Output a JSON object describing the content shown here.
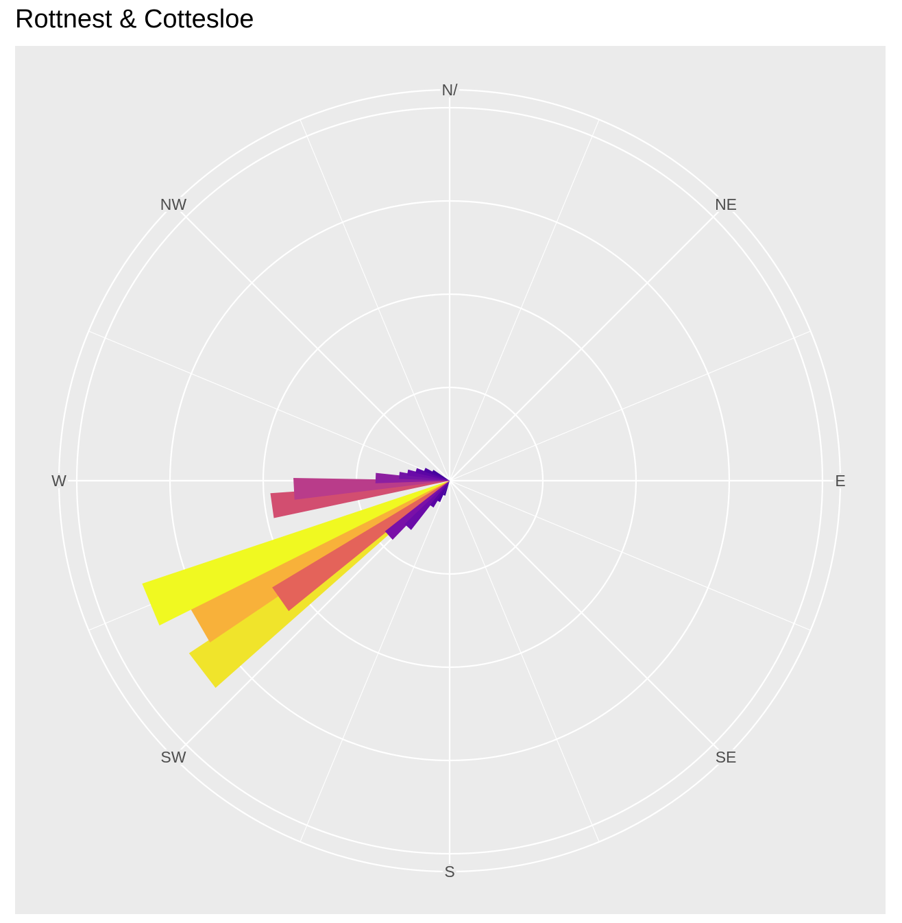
{
  "chart_data": {
    "type": "bar",
    "projection": "polar",
    "title": "Rottnest & Cottesloe",
    "direction_labels": [
      "N/",
      "NE",
      "E",
      "SE",
      "S",
      "SW",
      "W",
      "NW"
    ],
    "bearing_unit": "degrees",
    "radial_grid_rings": 4,
    "grid": true,
    "legend": "none",
    "bars": [
      {
        "bearing": 232.5,
        "value": 0.8,
        "color": "#f0e42b"
      },
      {
        "bearing": 240.0,
        "value": 0.74,
        "color": "#f8b13a"
      },
      {
        "bearing": 247.5,
        "value": 0.83,
        "color": "#f0f921"
      },
      {
        "bearing": 235.0,
        "value": 0.53,
        "color": "#e4635a"
      },
      {
        "bearing": 262.0,
        "value": 0.46,
        "color": "#d24e70"
      },
      {
        "bearing": 267.0,
        "value": 0.4,
        "color": "#b93c8a"
      },
      {
        "bearing": 272.0,
        "value": 0.19,
        "color": "#8c1fa0"
      },
      {
        "bearing": 276.0,
        "value": 0.13,
        "color": "#7314a6"
      },
      {
        "bearing": 281.0,
        "value": 0.11,
        "color": "#6a0ba8"
      },
      {
        "bearing": 287.0,
        "value": 0.09,
        "color": "#5b06a5"
      },
      {
        "bearing": 294.0,
        "value": 0.07,
        "color": "#4c02a1"
      },
      {
        "bearing": 300.0,
        "value": 0.05,
        "color": "#42039d"
      },
      {
        "bearing": 228.0,
        "value": 0.21,
        "color": "#7a10a8"
      },
      {
        "bearing": 222.0,
        "value": 0.16,
        "color": "#6a0ba8"
      },
      {
        "bearing": 215.0,
        "value": 0.08,
        "color": "#5804a3"
      },
      {
        "bearing": 208.0,
        "value": 0.06,
        "color": "#4c02a1"
      },
      {
        "bearing": 200.0,
        "value": 0.04,
        "color": "#42039d"
      }
    ]
  }
}
